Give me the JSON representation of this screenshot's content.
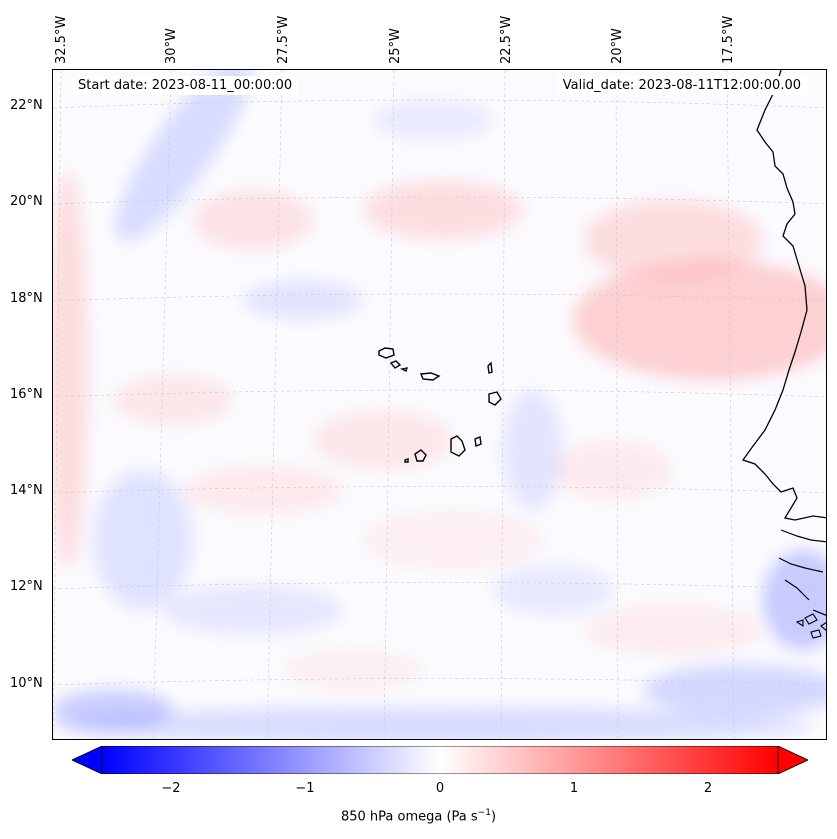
{
  "map": {
    "start_date": "Start date: 2023-08-11_00:00:00",
    "valid_date": "Valid_date: 2023-08-11T12:00:00.00",
    "lon_ticks": [
      "32.5°W",
      "30°W",
      "27.5°W",
      "25°W",
      "22.5°W",
      "20°W",
      "17.5°W"
    ],
    "lat_ticks": [
      "22°N",
      "20°N",
      "18°N",
      "16°N",
      "14°N",
      "12°N",
      "10°N"
    ],
    "field": "850 hPa omega",
    "colors": {
      "neg": "#0000ff",
      "zero": "#ffffff",
      "pos": "#ff0000",
      "coast": "#000000",
      "grid": "#bbbbbb"
    }
  },
  "colorbar": {
    "ticks": [
      "−2",
      "−1",
      "0",
      "1",
      "2"
    ],
    "label": "850 hPa omega (Pa s",
    "label_exp": "−1",
    "label_close": ")",
    "range": [
      -2.5,
      2.5
    ]
  }
}
